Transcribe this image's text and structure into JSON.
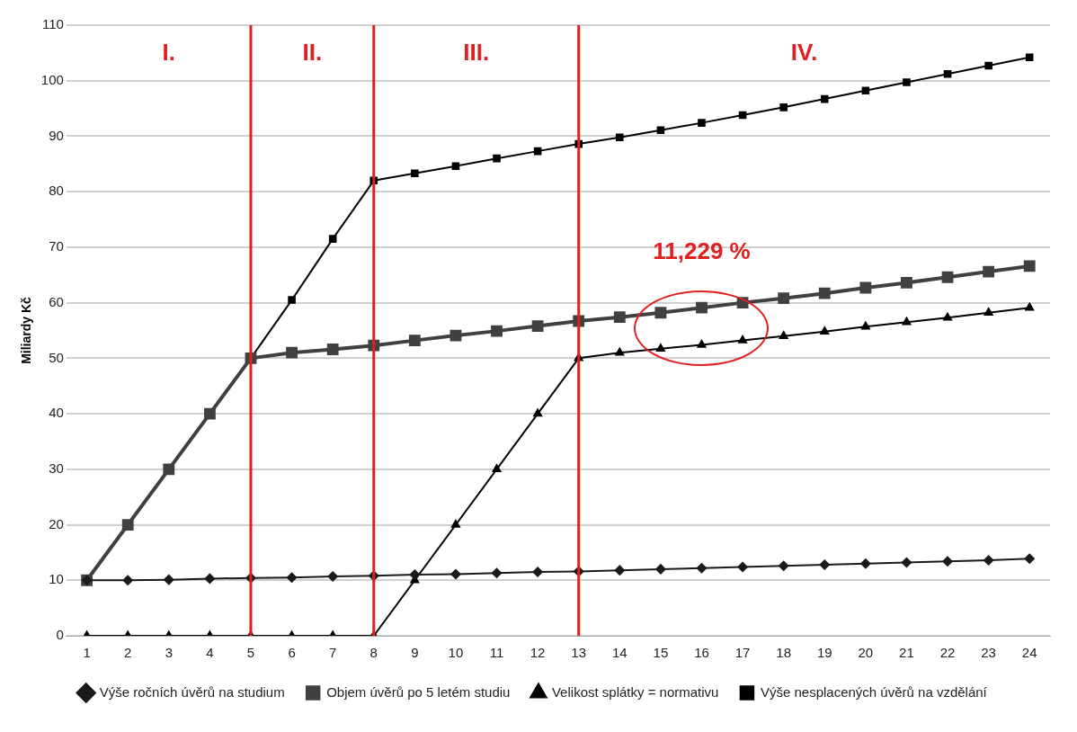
{
  "chart_data": {
    "type": "line",
    "ylabel": "Miliardy Kč",
    "x": [
      1,
      2,
      3,
      4,
      5,
      6,
      7,
      8,
      9,
      10,
      11,
      12,
      13,
      14,
      15,
      16,
      17,
      18,
      19,
      20,
      21,
      22,
      23,
      24
    ],
    "xlim": [
      0.5,
      24.5
    ],
    "xticks": [
      1,
      2,
      3,
      4,
      5,
      6,
      7,
      8,
      9,
      10,
      11,
      12,
      13,
      14,
      15,
      16,
      17,
      18,
      19,
      20,
      21,
      22,
      23,
      24
    ],
    "ylim": [
      0,
      110
    ],
    "yticks": [
      0,
      10,
      20,
      30,
      40,
      50,
      60,
      70,
      80,
      90,
      100,
      110
    ],
    "grid": "y",
    "legend": "bottom",
    "series": [
      {
        "name": "Výše ročních úvěrů na studium",
        "color": "#1a1a1a",
        "marker": "diamond",
        "values": [
          10,
          10,
          10.1,
          10.3,
          10.4,
          10.5,
          10.7,
          10.8,
          11,
          11.1,
          11.3,
          11.5,
          11.6,
          11.8,
          12,
          12.2,
          12.4,
          12.6,
          12.8,
          13,
          13.2,
          13.4,
          13.6,
          13.9
        ]
      },
      {
        "name": "Objem úvěrů po 5 letém studiu",
        "color": "#404040",
        "marker": "square",
        "values": [
          10,
          20,
          30,
          40,
          50,
          51,
          51.6,
          52.3,
          53.2,
          54.1,
          54.9,
          55.8,
          56.7,
          57.4,
          58.2,
          59.1,
          60,
          60.8,
          61.7,
          62.7,
          63.6,
          64.6,
          65.6,
          66.6
        ]
      },
      {
        "name": "Velikost splátky = normativu",
        "color": "#000000",
        "marker": "triangle",
        "values": [
          0,
          0,
          0,
          0,
          0,
          0,
          0,
          0,
          10,
          20,
          30,
          40,
          50,
          51,
          51.7,
          52.4,
          53.2,
          54,
          54.8,
          55.7,
          56.5,
          57.3,
          58.2,
          59.1
        ]
      },
      {
        "name": "Výše nesplacených úvěrů na vzdělání",
        "color": "#000000",
        "marker": "square",
        "values": [
          10,
          20,
          30,
          40,
          50,
          60.5,
          71.5,
          82,
          83.3,
          84.6,
          86,
          87.3,
          88.6,
          89.8,
          91.1,
          92.4,
          93.8,
          95.2,
          96.7,
          98.2,
          99.7,
          101.2,
          102.7,
          104.2
        ]
      }
    ],
    "ref_lines": [
      {
        "axis": "x",
        "value": 5,
        "color": "#e02020"
      },
      {
        "axis": "x",
        "value": 8,
        "color": "#e02020"
      },
      {
        "axis": "x",
        "value": 13,
        "color": "#e02020"
      }
    ],
    "annotations": [
      "I.",
      "II.",
      "III.",
      "IV.",
      {
        "text": "11,229 %",
        "x": 16,
        "y": 59
      }
    ]
  }
}
